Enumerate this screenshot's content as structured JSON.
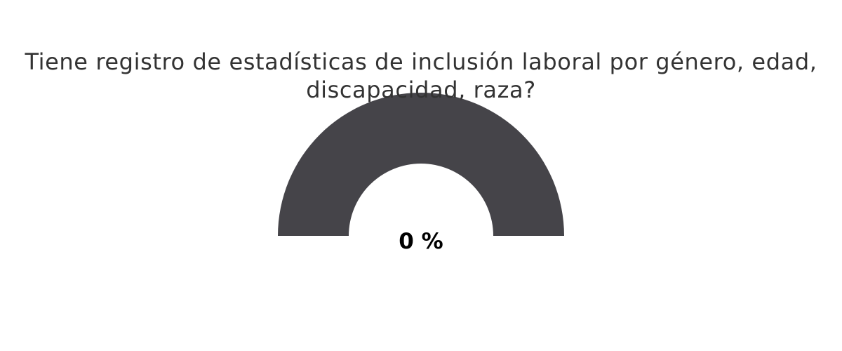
{
  "chart_data": {
    "type": "gauge",
    "title": "Tiene registro de estadísticas de inclusión laboral por género, edad, discapacidad, raza?",
    "value": 0,
    "value_label": "0 %",
    "min": 0,
    "max": 100,
    "colors": {
      "track": "#454449",
      "fill": "#454449",
      "title": "#333333",
      "value": "#000000"
    }
  }
}
